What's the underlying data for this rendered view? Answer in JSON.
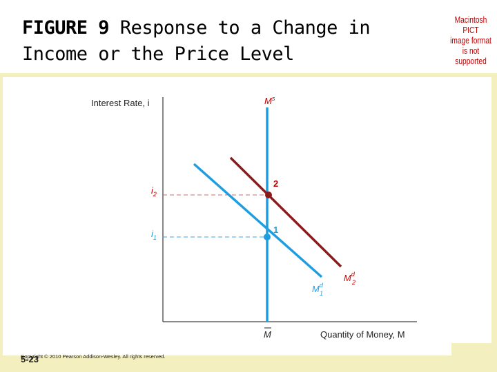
{
  "slide": {
    "title_figure": "FIGURE 9",
    "title_text": "Response to a Change in Income or the Price Level",
    "pict_note": [
      "Macintosh PICT",
      "image format",
      "is not supported"
    ],
    "page_number": "5-23",
    "copyright": "Copyright © 2010 Pearson Addison-Wesley. All rights reserved."
  },
  "diagram": {
    "y_axis_label": "Interest Rate, i",
    "x_axis_label": "Quantity of Money, M",
    "supply_label": "M",
    "supply_sup": "s",
    "x_tick_label": "M",
    "y_tick_i2_main": "i",
    "y_tick_i2_sub": "2",
    "y_tick_i1_main": "i",
    "y_tick_i1_sub": "1",
    "point_1_label": "1",
    "point_2_label": "2",
    "demand_1_main": "M",
    "demand_1_sup": "d",
    "demand_1_sub": "1",
    "demand_2_main": "M",
    "demand_2_sup": "d",
    "demand_2_sub": "2",
    "colors": {
      "supply": "#1e9ee0",
      "demand_1": "#1e9ee0",
      "demand_2": "#8b1a1a",
      "label_red": "#c00000",
      "axis": "#444444",
      "guide": "#c07070"
    }
  }
}
